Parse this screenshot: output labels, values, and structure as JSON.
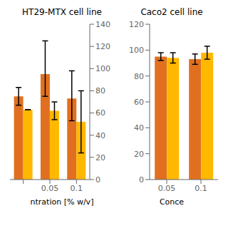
{
  "chart_data": [
    {
      "type": "bar",
      "title": "HT29-MTX cell line",
      "x_label": "ntration [% w/v]",
      "categories": [
        null,
        "0.05",
        "0.1"
      ],
      "series": [
        {
          "color": "#E07020",
          "values": [
            75,
            95,
            73
          ],
          "error_minus": [
            8,
            20,
            20
          ],
          "error_plus": [
            8,
            30,
            25
          ]
        },
        {
          "color": "#FFB800",
          "values": [
            63,
            62,
            52
          ],
          "error_minus": [
            0,
            8,
            28
          ],
          "error_plus": [
            0,
            8,
            28
          ]
        }
      ],
      "ylim": [
        0,
        140
      ],
      "yticks": [
        0,
        20,
        40,
        60,
        80,
        100,
        120,
        140
      ],
      "grid": false
    },
    {
      "type": "bar",
      "title": "Caco2 cell line",
      "x_label": "Conce",
      "categories": [
        "0.05",
        "0.1"
      ],
      "series": [
        {
          "color": "#E07020",
          "values": [
            95,
            93
          ],
          "errors": [
            3,
            4
          ]
        },
        {
          "color": "#FFB800",
          "values": [
            94,
            98
          ],
          "errors": [
            4,
            5
          ]
        }
      ],
      "ylim": [
        0,
        120
      ],
      "yticks": [
        0,
        20,
        40,
        60,
        80,
        100,
        120
      ],
      "grid": false
    }
  ]
}
